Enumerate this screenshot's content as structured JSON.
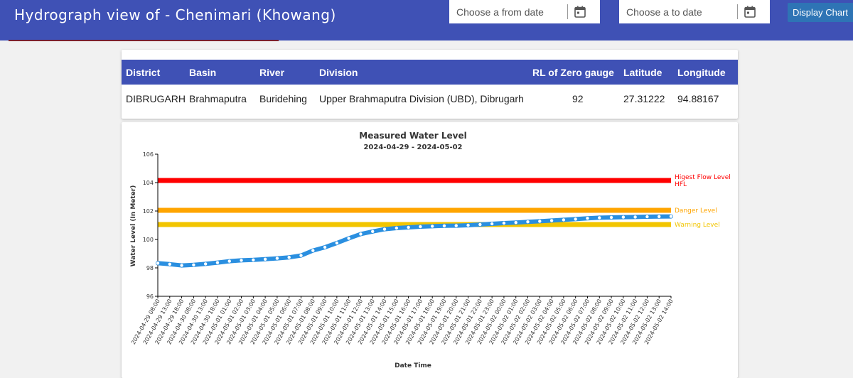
{
  "header": {
    "title": "Hydrograph view of - Chenimari (Khowang)",
    "from_placeholder": "Choose a from date",
    "to_placeholder": "Choose a to date",
    "from_icon": "calendar-icon",
    "to_icon": "calendar-icon",
    "display_button": "Display Chart",
    "bar_color": "#3f51b5"
  },
  "station_table": {
    "columns": [
      "District",
      "Basin",
      "River",
      "Division",
      "RL of Zero gauge",
      "Latitude",
      "Longitude"
    ],
    "rows": [
      [
        "DIBRUGARH",
        "Brahmaputra",
        "Buridehing",
        "Upper Brahmaputra Division (UBD), Dibrugarh",
        "92",
        "27.31222",
        "94.88167"
      ]
    ]
  },
  "chart_data": {
    "type": "line",
    "title": "Measured Water Level",
    "subtitle": "2024-04-29 - 2024-05-02",
    "xlabel": "Date Time",
    "ylabel": "Water Level (In Meter)",
    "ylim": [
      96,
      106
    ],
    "yticks": [
      96,
      98,
      100,
      102,
      104,
      106
    ],
    "categories": [
      "2024-04-29 08:00",
      "2024-04-29 13:00",
      "2024-04-29 18:00",
      "2024-04-30 08:00",
      "2024-04-30 13:00",
      "2024-04-30 18:00",
      "2024-05-01 01:00",
      "2024-05-01 02:00",
      "2024-05-01 03:00",
      "2024-05-01 04:00",
      "2024-05-01 05:00",
      "2024-05-01 06:00",
      "2024-05-01 07:00",
      "2024-05-01 08:00",
      "2024-05-01 09:00",
      "2024-05-01 10:00",
      "2024-05-01 11:00",
      "2024-05-01 12:00",
      "2024-05-01 13:00",
      "2024-05-01 14:00",
      "2024-05-01 15:00",
      "2024-05-01 16:00",
      "2024-05-01 17:00",
      "2024-05-01 18:00",
      "2024-05-01 19:00",
      "2024-05-01 20:00",
      "2024-05-01 21:00",
      "2024-05-01 22:00",
      "2024-05-01 23:00",
      "2024-05-02 00:00",
      "2024-05-02 01:00",
      "2024-05-02 02:00",
      "2024-05-02 03:00",
      "2024-05-02 04:00",
      "2024-05-02 05:00",
      "2024-05-02 06:00",
      "2024-05-02 07:00",
      "2024-05-02 08:00",
      "2024-05-02 09:00",
      "2024-05-02 10:00",
      "2024-05-02 11:00",
      "2024-05-02 12:00",
      "2024-05-02 13:00",
      "2024-05-02 14:00"
    ],
    "series": [
      {
        "color": "#2a8fe0",
        "values": [
          98.33,
          98.26,
          98.17,
          98.21,
          98.28,
          98.37,
          98.47,
          98.53,
          98.56,
          98.61,
          98.67,
          98.74,
          98.87,
          99.22,
          99.45,
          99.75,
          100.08,
          100.38,
          100.56,
          100.72,
          100.8,
          100.85,
          100.9,
          100.93,
          100.96,
          100.97,
          101.0,
          101.05,
          101.1,
          101.15,
          101.19,
          101.24,
          101.28,
          101.33,
          101.38,
          101.43,
          101.49,
          101.53,
          101.55,
          101.57,
          101.58,
          101.6,
          101.61,
          101.62
        ]
      }
    ],
    "reference_lines": [
      {
        "label_lines": [
          "Higest Flow Level",
          "HFL"
        ],
        "value": 104.15,
        "color": "#ff0000"
      },
      {
        "label_lines": [
          "Danger Level"
        ],
        "value": 102.05,
        "color": "#ffa500"
      },
      {
        "label_lines": [
          "Warning Level"
        ],
        "value": 101.05,
        "color": "#f2c500"
      }
    ],
    "grid": false,
    "legend": "none"
  }
}
